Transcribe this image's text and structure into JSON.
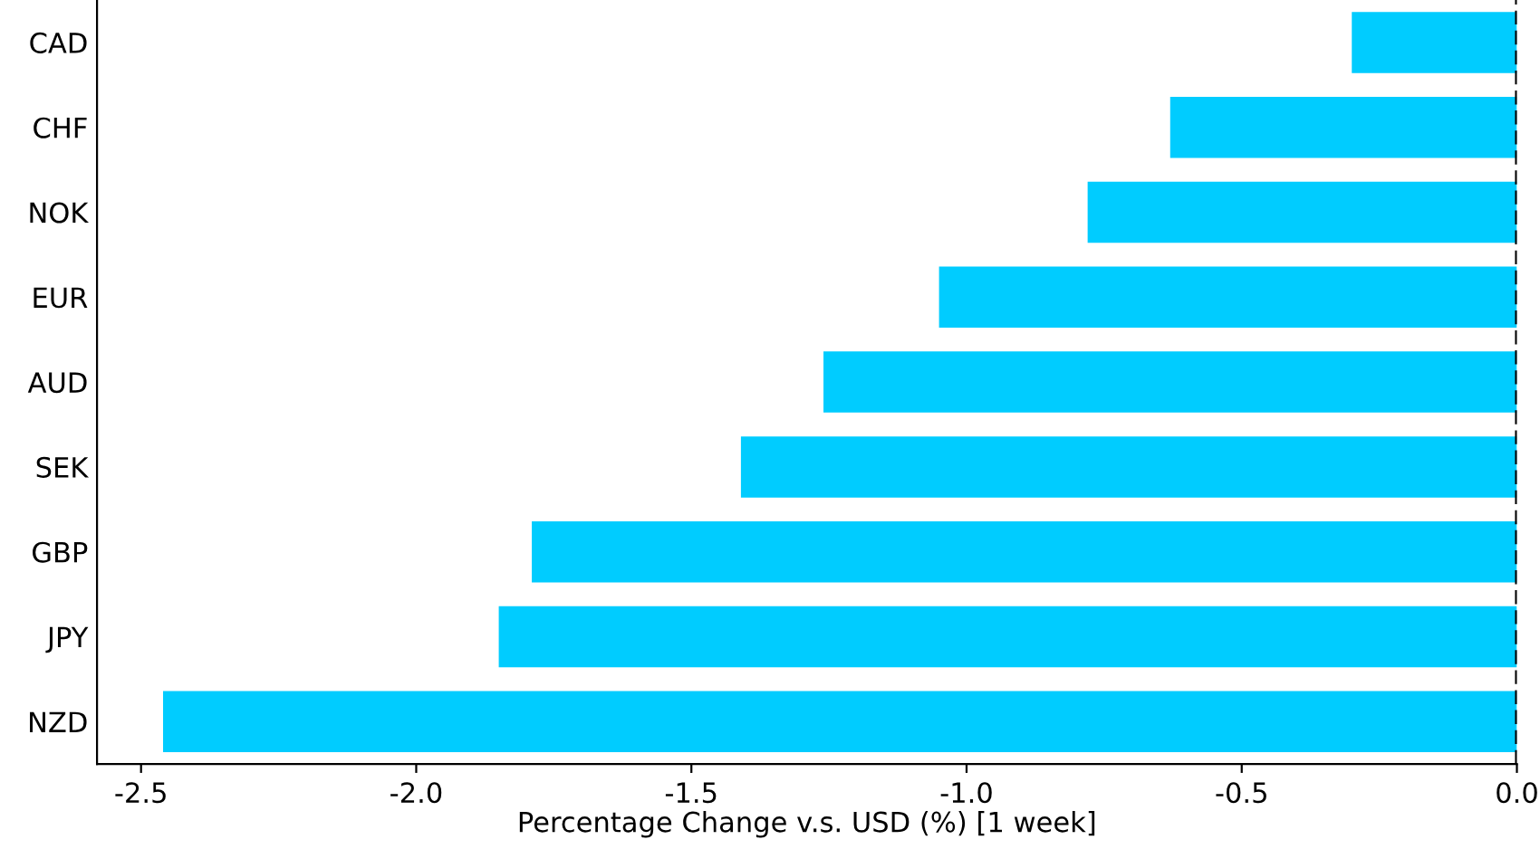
{
  "chart_data": {
    "type": "bar",
    "orientation": "horizontal",
    "xlabel": "Percentage Change v.s. USD (%) [1 week]",
    "categories": [
      "CAD",
      "CHF",
      "NOK",
      "EUR",
      "AUD",
      "SEK",
      "GBP",
      "JPY",
      "NZD"
    ],
    "values": [
      -0.3,
      -0.63,
      -0.78,
      -1.05,
      -1.26,
      -1.41,
      -1.79,
      -1.85,
      -2.46
    ],
    "color": "#00ccff",
    "xlim": [
      -2.58,
      0.0
    ],
    "xticks": [
      {
        "value": -2.5,
        "label": "-2.5"
      },
      {
        "value": -2.0,
        "label": "-2.0"
      },
      {
        "value": -1.5,
        "label": "-1.5"
      },
      {
        "value": -1.0,
        "label": "-1.0"
      },
      {
        "value": -0.5,
        "label": "-0.5"
      },
      {
        "value": 0.0,
        "label": "0.0"
      }
    ],
    "ref_lines": [
      {
        "axis": "x",
        "value": 0.0,
        "color": "#000000",
        "line_style": "dashed"
      }
    ],
    "grid": false,
    "legend": false
  }
}
